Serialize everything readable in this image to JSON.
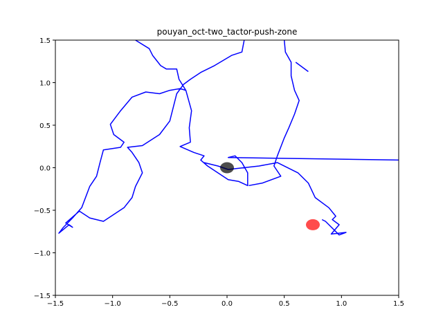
{
  "chart_data": {
    "type": "line",
    "title": "pouyan_oct-two_tactor-push-zone",
    "color": "#0000ff",
    "x": [
      -0.8,
      -0.68,
      -0.65,
      -0.58,
      -0.53,
      -0.44,
      -0.42,
      -0.36,
      -0.41,
      -0.5,
      -0.59,
      -0.71,
      -0.83,
      -0.93,
      -1.02,
      -0.99,
      -0.9,
      -0.93,
      -1.08,
      -1.11,
      -1.14,
      -1.2,
      -1.27,
      -1.35,
      -1.43,
      -1.47,
      -1.38,
      -1.35,
      -1.41,
      -1.29,
      -1.2,
      -1.08,
      -0.99,
      -0.9,
      -0.83,
      -0.8,
      -0.74,
      -0.77,
      -0.83,
      -0.87,
      -0.74,
      -0.59,
      -0.5,
      -0.47,
      -0.44,
      -0.38,
      -0.32,
      -0.23,
      -0.11,
      0.04,
      0.13,
      0.15,
      null,
      -0.36,
      -0.31,
      -0.33,
      -0.32,
      -0.41,
      -0.29,
      -0.2,
      -0.23,
      -0.17,
      -0.08,
      0.01,
      0.1,
      0.18,
      0.18,
      0.13,
      0.07,
      0.01,
      1.5,
      null,
      -0.2,
      -0.08,
      0.01,
      0.28,
      0.44,
      0.62,
      0.71,
      0.77,
      0.89,
      0.95,
      0.92,
      0.98,
      0.91,
      1.04,
      0.98,
      0.86,
      0.83,
      null,
      0.5,
      0.51,
      0.56,
      0.56,
      0.59,
      0.63,
      0.59,
      0.54,
      0.5,
      0.44,
      0.41,
      0.47,
      0.31,
      0.19,
      null,
      0.6,
      0.71
    ],
    "values": [
      1.5,
      1.4,
      1.32,
      1.2,
      1.16,
      1.16,
      1.04,
      0.91,
      0.93,
      0.91,
      0.87,
      0.89,
      0.83,
      0.67,
      0.51,
      0.39,
      0.3,
      0.24,
      0.21,
      0.06,
      -0.1,
      -0.22,
      -0.47,
      -0.59,
      -0.7,
      -0.77,
      -0.67,
      -0.7,
      -0.65,
      -0.51,
      -0.59,
      -0.63,
      -0.55,
      -0.47,
      -0.35,
      -0.22,
      -0.06,
      0.06,
      0.18,
      0.24,
      0.26,
      0.39,
      0.55,
      0.71,
      0.87,
      0.98,
      1.04,
      1.12,
      1.2,
      1.32,
      1.36,
      1.5,
      null,
      0.91,
      0.67,
      0.47,
      0.3,
      0.25,
      0.18,
      0.14,
      0.09,
      0.02,
      -0.06,
      -0.14,
      -0.16,
      -0.21,
      -0.06,
      0.06,
      0.14,
      0.12,
      0.09,
      null,
      0.06,
      0.02,
      -0.02,
      0.02,
      0.06,
      -0.06,
      -0.18,
      -0.35,
      -0.47,
      -0.57,
      -0.61,
      -0.67,
      -0.78,
      -0.76,
      -0.79,
      -0.63,
      -0.61,
      null,
      1.5,
      1.36,
      1.24,
      1.08,
      0.91,
      0.79,
      0.63,
      0.47,
      0.35,
      0.14,
      0.02,
      -0.1,
      -0.18,
      -0.21,
      null,
      1.24,
      1.13
    ],
    "markers": [
      {
        "x": 0.0,
        "y": 0.0,
        "color": "#000000"
      },
      {
        "x": 0.75,
        "y": -0.67,
        "color": "#ff0000"
      }
    ],
    "xlim": [
      -1.5,
      1.5
    ],
    "ylim": [
      -1.5,
      1.5
    ],
    "xticks": [
      {
        "value": -1.5,
        "label": "−1.5"
      },
      {
        "value": -1.0,
        "label": "−1.0"
      },
      {
        "value": -0.5,
        "label": "−0.5"
      },
      {
        "value": 0.0,
        "label": "0.0"
      },
      {
        "value": 0.5,
        "label": "0.5"
      },
      {
        "value": 1.0,
        "label": "1.0"
      },
      {
        "value": 1.5,
        "label": "1.5"
      }
    ],
    "yticks": [
      {
        "value": -1.5,
        "label": "−1.5"
      },
      {
        "value": -1.0,
        "label": "−1.0"
      },
      {
        "value": -0.5,
        "label": "−0.5"
      },
      {
        "value": 0.0,
        "label": "0.0"
      },
      {
        "value": 0.5,
        "label": "0.5"
      },
      {
        "value": 1.0,
        "label": "1.0"
      },
      {
        "value": 1.5,
        "label": "1.5"
      }
    ]
  }
}
